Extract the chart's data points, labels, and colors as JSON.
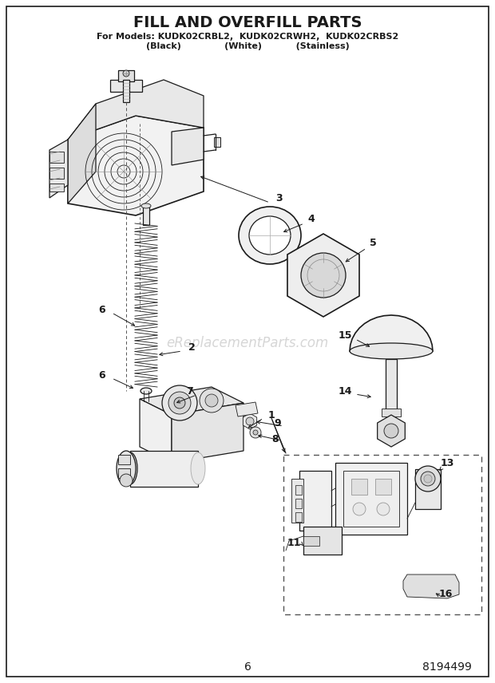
{
  "title": "FILL AND OVERFILL PARTS",
  "subtitle_line1": "For Models: KUDK02CRBL2,  KUDK02CRWH2,  KUDK02CRBS2",
  "subtitle_line2": "(Black)              (White)           (Stainless)",
  "page_number": "6",
  "part_number": "8194499",
  "watermark": "eReplacementParts.com",
  "bg": "#ffffff",
  "ink": "#1a1a1a",
  "gray1": "#cccccc",
  "gray2": "#999999",
  "gray3": "#666666"
}
